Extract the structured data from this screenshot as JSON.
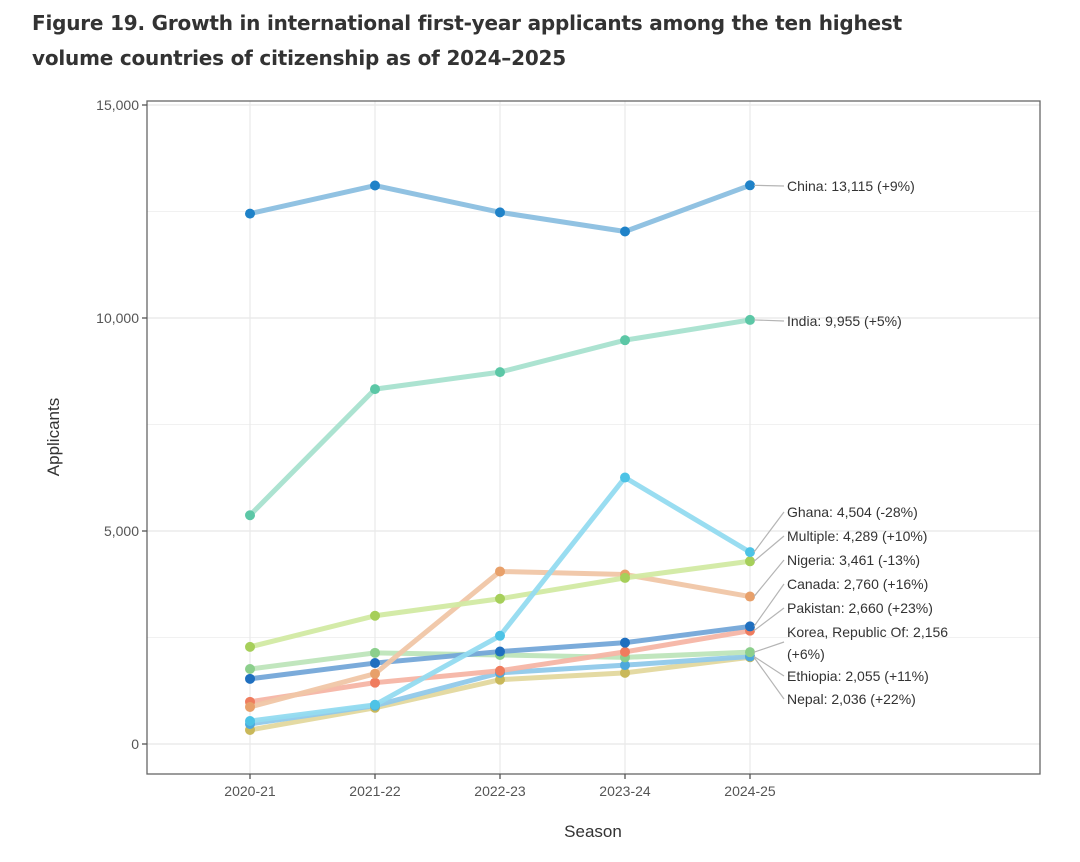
{
  "figure": {
    "title_line1": "Figure 19. Growth in international first-year applicants among the ten highest",
    "title_line2": "volume countries of citizenship as of 2024–2025"
  },
  "chart_data": {
    "type": "line",
    "title": "Figure 19. Growth in international first-year applicants among the ten highest volume countries of citizenship as of 2024–2025",
    "xlabel": "Season",
    "ylabel": "Applicants",
    "x": [
      "2020-21",
      "2021-22",
      "2022-23",
      "2023-24",
      "2024-25"
    ],
    "ylim": [
      -700,
      15100
    ],
    "yticks": [
      0,
      5000,
      10000,
      15000
    ],
    "ytick_labels": [
      "0",
      "5,000",
      "10,000",
      "15,000"
    ],
    "grid": true,
    "legend": "direct-labels-right",
    "series": [
      {
        "name": "China",
        "label": "China: 13,115 (+9%)",
        "color": "#1f82c8",
        "line_color": "#8bbfe0",
        "values": [
          12450,
          13110,
          12480,
          12030,
          13115
        ]
      },
      {
        "name": "India",
        "label": "India: 9,955 (+5%)",
        "color": "#5cc7a6",
        "line_color": "#a8e2cf",
        "values": [
          5370,
          8330,
          8730,
          9480,
          9955
        ]
      },
      {
        "name": "Ghana",
        "label": "Ghana: 4,504 (-28%)",
        "color": "#4dc3e6",
        "line_color": "#93dbf0",
        "values": [
          540,
          920,
          2540,
          6255,
          4504
        ]
      },
      {
        "name": "Multiple",
        "label": "Multiple: 4,289 (+10%)",
        "color": "#a6cf5a",
        "line_color": "#d2eaa3",
        "values": [
          2280,
          3010,
          3410,
          3899,
          4289
        ]
      },
      {
        "name": "Nigeria",
        "label": "Nigeria: 3,461 (-13%)",
        "color": "#e8a06a",
        "line_color": "#f0c6a6",
        "values": [
          870,
          1650,
          4050,
          3978,
          3461
        ]
      },
      {
        "name": "Canada",
        "label": "Canada: 2,760 (+16%)",
        "color": "#1f6fbf",
        "line_color": "#74a6d8",
        "values": [
          1530,
          1900,
          2170,
          2379,
          2760
        ]
      },
      {
        "name": "Pakistan",
        "label": "Pakistan: 2,660 (+23%)",
        "color": "#ef7c5e",
        "line_color": "#f5b5a5",
        "values": [
          990,
          1440,
          1720,
          2163,
          2660
        ]
      },
      {
        "name": "Korea, Republic Of",
        "label_line1": "Korea, Republic Of: 2,156",
        "label_line2": "(+6%)",
        "color": "#8ccf8c",
        "line_color": "#bee5ba",
        "values": [
          1760,
          2140,
          2090,
          2034,
          2156
        ]
      },
      {
        "name": "Ethiopia",
        "label": "Ethiopia: 2,055 (+11%)",
        "color": "#4da8dc",
        "line_color": "#90c9ea",
        "values": [
          470,
          900,
          1670,
          1851,
          2055
        ]
      },
      {
        "name": "Nepal",
        "label": "Nepal: 2,036 (+22%)",
        "color": "#c9b85a",
        "line_color": "#e3d89e",
        "values": [
          330,
          850,
          1510,
          1669,
          2036
        ]
      }
    ]
  }
}
